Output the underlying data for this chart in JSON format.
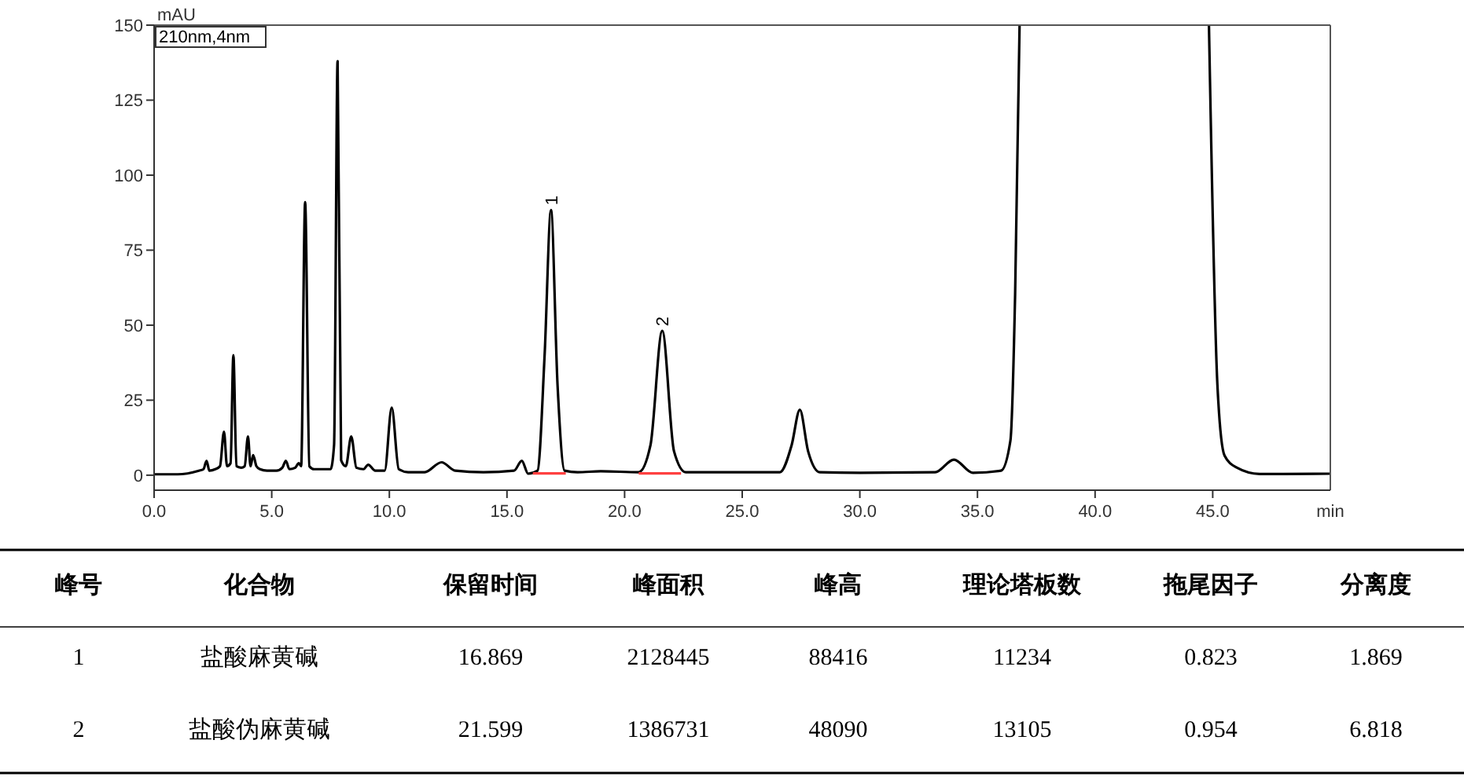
{
  "chart_data": {
    "type": "line",
    "xlabel": "min",
    "ylabel": "mAU",
    "xlim": [
      0,
      50
    ],
    "ylim": [
      -5,
      150
    ],
    "xticks": [
      {
        "value": 0,
        "label": "0.0"
      },
      {
        "value": 5,
        "label": "5.0"
      },
      {
        "value": 10,
        "label": "10.0"
      },
      {
        "value": 15,
        "label": "15.0"
      },
      {
        "value": 20,
        "label": "20.0"
      },
      {
        "value": 25,
        "label": "25.0"
      },
      {
        "value": 30,
        "label": "30.0"
      },
      {
        "value": 35,
        "label": "35.0"
      },
      {
        "value": 40,
        "label": "40.0"
      },
      {
        "value": 45,
        "label": "45.0"
      }
    ],
    "yticks": [
      0,
      25,
      50,
      75,
      100,
      125,
      150
    ],
    "grid": false,
    "marker": "none",
    "line_style": "solid",
    "series": [
      {
        "color": "#000000",
        "x": [
          0,
          1,
          1.9,
          2.1,
          2.23,
          2.35,
          2.6,
          2.8,
          2.97,
          3.1,
          3.25,
          3.37,
          3.5,
          3.7,
          3.85,
          3.99,
          4.1,
          4.21,
          4.35,
          4.5,
          4.8,
          5.2,
          5.45,
          5.6,
          5.75,
          6.0,
          6.15,
          6.25,
          6.42,
          6.6,
          6.8,
          7.2,
          7.5,
          7.65,
          7.8,
          7.95,
          8.15,
          8.38,
          8.6,
          8.9,
          9.1,
          9.4,
          9.8,
          10.1,
          10.4,
          10.8,
          11.5,
          12.22,
          12.8,
          14,
          15.3,
          15.63,
          15.9,
          16.3,
          16.6,
          16.87,
          17.15,
          17.45,
          18,
          19,
          20.6,
          21.1,
          21.6,
          22.1,
          22.6,
          24,
          26.6,
          27.1,
          27.45,
          27.8,
          28.3,
          30,
          33.2,
          34.0,
          34.8,
          36.0,
          36.4,
          36.6,
          36.79,
          null,
          44.84,
          45.2,
          45.5,
          46,
          47,
          48,
          50
        ],
        "values": [
          0.3,
          0.3,
          1.5,
          2,
          4.8,
          1.5,
          2,
          3,
          14.5,
          3,
          4,
          40,
          3,
          2.5,
          3,
          12.9,
          3,
          6.7,
          3,
          2,
          1.5,
          1.5,
          2.5,
          4.8,
          2,
          2.5,
          4,
          3,
          91,
          3,
          2,
          2,
          2,
          10,
          138,
          5,
          3,
          12.9,
          2.5,
          2,
          3.5,
          1.5,
          1.5,
          22.5,
          2,
          1,
          1,
          4.3,
          1.5,
          1,
          1.5,
          4.8,
          0.5,
          1.5,
          40,
          88.4,
          30,
          1.5,
          1,
          1.3,
          1,
          10,
          48.1,
          8,
          1,
          1,
          1,
          10,
          21.8,
          8,
          1,
          0.8,
          1,
          5.2,
          0.8,
          1.5,
          11.5,
          60,
          150,
          null,
          150,
          30,
          6.6,
          2.6,
          0.4,
          0.4,
          0.5
        ]
      },
      {
        "color": "#ff4040",
        "x": [
          16.1,
          17.5
        ],
        "values": [
          0.6,
          0.6
        ]
      },
      {
        "color": "#ff4040",
        "x": [
          20.6,
          22.4
        ],
        "values": [
          0.6,
          0.6
        ]
      }
    ],
    "annotations": [
      "210nm,4nm",
      {
        "text": "1",
        "x": 16.87,
        "y": 88.4
      },
      {
        "text": "2",
        "x": 21.6,
        "y": 48.1
      },
      "峰号",
      "化合物",
      "保留时间",
      "峰面积",
      "峰高",
      "理论塔板数",
      "拖尾因子",
      "分离度",
      "1",
      "盐酸麻黄碱",
      "16.869",
      "2128445",
      "88416",
      "11234",
      "0.823",
      "1.869",
      "2",
      "盐酸伪麻黄碱",
      "21.599",
      "1386731",
      "48090",
      "13105",
      "0.954",
      "6.818"
    ]
  }
}
